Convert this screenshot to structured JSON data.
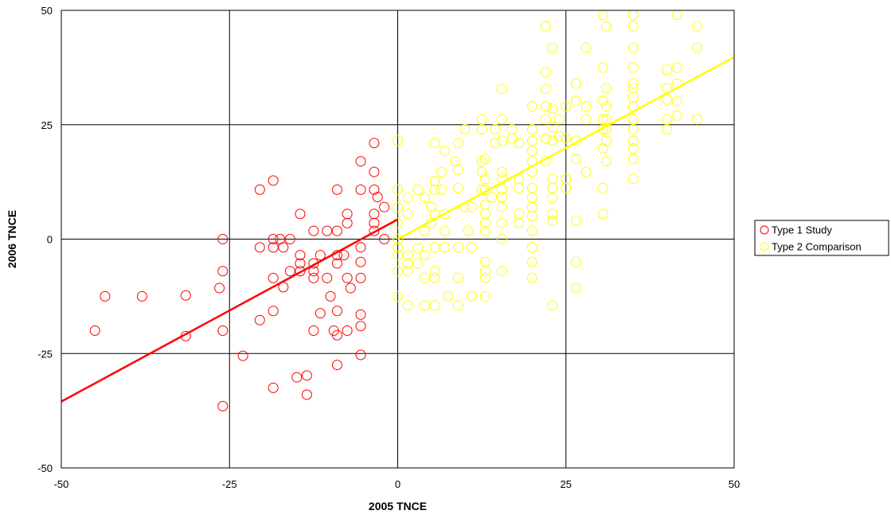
{
  "chart_data": {
    "type": "scatter",
    "title": "",
    "xlabel": "2005 TNCE",
    "ylabel": "2006 TNCE",
    "xlim": [
      -50,
      50
    ],
    "ylim": [
      -50,
      50
    ],
    "xticks": [
      -50,
      -25,
      0,
      25,
      50
    ],
    "yticks": [
      -50,
      -25,
      0,
      25,
      50
    ],
    "xtick_labels": [
      "-50",
      "-25",
      "0",
      "25",
      "50"
    ],
    "ytick_labels": [
      "-50",
      "-25",
      "0",
      "25",
      "50"
    ],
    "grid": true,
    "legend_position": "right",
    "series": [
      {
        "name": "Type 1 Study",
        "color": "#ff0000",
        "marker": "open-circle",
        "trendline": {
          "x": [
            -50,
            0
          ],
          "y": [
            -35.5,
            4.3
          ]
        },
        "points": [
          [
            -45,
            -20
          ],
          [
            -43.5,
            -12.5
          ],
          [
            -38,
            -12.5
          ],
          [
            -31.5,
            -12.3
          ],
          [
            -31.5,
            -21.2
          ],
          [
            -26.5,
            -10.7
          ],
          [
            -26,
            0
          ],
          [
            -26,
            -7
          ],
          [
            -26,
            -20
          ],
          [
            -26,
            -36.5
          ],
          [
            -23,
            -25.5
          ],
          [
            -20.5,
            10.8
          ],
          [
            -20.5,
            -1.8
          ],
          [
            -20.5,
            -17.7
          ],
          [
            -18.5,
            12.8
          ],
          [
            -18.5,
            0
          ],
          [
            -18.5,
            -1.8
          ],
          [
            -18.5,
            -8.5
          ],
          [
            -18.5,
            -15.7
          ],
          [
            -18.5,
            -32.5
          ],
          [
            -17.5,
            0
          ],
          [
            -17,
            -1.8
          ],
          [
            -17,
            -10.5
          ],
          [
            -16,
            0
          ],
          [
            -16,
            -7
          ],
          [
            -15,
            -30.2
          ],
          [
            -14.5,
            5.5
          ],
          [
            -14.5,
            -3.5
          ],
          [
            -14.5,
            -5.3
          ],
          [
            -14.5,
            -7
          ],
          [
            -13.5,
            -29.8
          ],
          [
            -13.5,
            -34
          ],
          [
            -12.5,
            1.8
          ],
          [
            -12.5,
            -5.3
          ],
          [
            -12.5,
            -7
          ],
          [
            -12.5,
            -8.5
          ],
          [
            -12.5,
            -20
          ],
          [
            -11.5,
            -3.5
          ],
          [
            -11.5,
            -16.2
          ],
          [
            -10.5,
            1.8
          ],
          [
            -10.5,
            -8.5
          ],
          [
            -10,
            -12.5
          ],
          [
            -9.5,
            -20
          ],
          [
            -9,
            10.8
          ],
          [
            -9,
            1.8
          ],
          [
            -9,
            -3.5
          ],
          [
            -9,
            -5.3
          ],
          [
            -9,
            -15.7
          ],
          [
            -9,
            -21
          ],
          [
            -9,
            -27.5
          ],
          [
            -8,
            -3.5
          ],
          [
            -7.5,
            5.5
          ],
          [
            -7.5,
            3.5
          ],
          [
            -7.5,
            -8.5
          ],
          [
            -7.5,
            -20
          ],
          [
            -7,
            -10.7
          ],
          [
            -5.5,
            17
          ],
          [
            -5.5,
            10.8
          ],
          [
            -5.5,
            -1.8
          ],
          [
            -5.5,
            -5
          ],
          [
            -5.5,
            -8.5
          ],
          [
            -5.5,
            -16.5
          ],
          [
            -5.5,
            -19
          ],
          [
            -5.5,
            -25.3
          ],
          [
            -3.5,
            21
          ],
          [
            -3.5,
            14.7
          ],
          [
            -3.5,
            10.8
          ],
          [
            -3.5,
            5.5
          ],
          [
            -3.5,
            3.5
          ],
          [
            -3.5,
            1.8
          ],
          [
            -3,
            9.2
          ],
          [
            -2,
            7
          ],
          [
            -2,
            0
          ]
        ]
      },
      {
        "name": "Type 2 Comparison",
        "color": "#ffff00",
        "marker": "open-circle",
        "trendline": {
          "x": [
            0,
            50
          ],
          "y": [
            0,
            39.8
          ]
        },
        "points": [
          [
            0,
            21.5
          ],
          [
            0,
            10.8
          ],
          [
            0,
            7
          ],
          [
            0,
            3.5
          ],
          [
            0,
            0
          ],
          [
            0,
            -1.8
          ],
          [
            0,
            -3.5
          ],
          [
            0,
            -7
          ],
          [
            0,
            -12.5
          ],
          [
            1.5,
            9
          ],
          [
            1.5,
            5.5
          ],
          [
            1.5,
            -3.5
          ],
          [
            1.5,
            -5.3
          ],
          [
            1.5,
            -7
          ],
          [
            1.5,
            -14.5
          ],
          [
            3,
            10.8
          ],
          [
            3,
            -2
          ],
          [
            3,
            -5.3
          ],
          [
            4,
            9
          ],
          [
            4,
            1.8
          ],
          [
            4,
            -3.5
          ],
          [
            4,
            -8.5
          ],
          [
            4,
            -14.5
          ],
          [
            5,
            7
          ],
          [
            5,
            3.5
          ],
          [
            5.5,
            21
          ],
          [
            5.5,
            12.7
          ],
          [
            5.5,
            10.8
          ],
          [
            5.5,
            5.5
          ],
          [
            5.5,
            -1.8
          ],
          [
            5.5,
            -7
          ],
          [
            5.5,
            -8.5
          ],
          [
            5.5,
            -14.5
          ],
          [
            6.5,
            14.7
          ],
          [
            6.5,
            10.8
          ],
          [
            7,
            19.3
          ],
          [
            7,
            5.5
          ],
          [
            7,
            1.8
          ],
          [
            7,
            -1.8
          ],
          [
            7.5,
            -12.5
          ],
          [
            8.5,
            17
          ],
          [
            9,
            21
          ],
          [
            9,
            15.2
          ],
          [
            9,
            11.2
          ],
          [
            9,
            -1.8
          ],
          [
            9,
            -8.5
          ],
          [
            9,
            -14.5
          ],
          [
            10,
            24
          ],
          [
            10,
            7
          ],
          [
            10.5,
            1.8
          ],
          [
            11,
            7
          ],
          [
            11,
            -1.8
          ],
          [
            11,
            -12.5
          ],
          [
            12.5,
            26.2
          ],
          [
            12.5,
            24
          ],
          [
            12.5,
            17
          ],
          [
            12.5,
            14.7
          ],
          [
            12.5,
            10.8
          ],
          [
            13,
            17.5
          ],
          [
            13,
            13.2
          ],
          [
            13,
            10.8
          ],
          [
            13,
            7.5
          ],
          [
            13,
            5.5
          ],
          [
            13,
            3.5
          ],
          [
            13,
            1.8
          ],
          [
            13,
            -5
          ],
          [
            13,
            -7
          ],
          [
            13,
            -8.5
          ],
          [
            13,
            -12.5
          ],
          [
            14,
            9.2
          ],
          [
            14.5,
            24
          ],
          [
            14.5,
            21
          ],
          [
            15.5,
            32.8
          ],
          [
            15.5,
            26.2
          ],
          [
            15.5,
            21.5
          ],
          [
            15.5,
            14.7
          ],
          [
            15.5,
            13.2
          ],
          [
            15.5,
            10.8
          ],
          [
            15.5,
            9.2
          ],
          [
            15.5,
            7
          ],
          [
            15.5,
            3.5
          ],
          [
            15.5,
            0
          ],
          [
            15.5,
            -7
          ],
          [
            17,
            24
          ],
          [
            17,
            22
          ],
          [
            18,
            21
          ],
          [
            18,
            13.2
          ],
          [
            18,
            11.2
          ],
          [
            18,
            5.5
          ],
          [
            18,
            3.5
          ],
          [
            20,
            29
          ],
          [
            20,
            24
          ],
          [
            20,
            21.5
          ],
          [
            20,
            19.3
          ],
          [
            20,
            17
          ],
          [
            20,
            14.7
          ],
          [
            20,
            11.2
          ],
          [
            20,
            9
          ],
          [
            20,
            7
          ],
          [
            20,
            5
          ],
          [
            20,
            1.8
          ],
          [
            20,
            -1.8
          ],
          [
            20,
            -5
          ],
          [
            20,
            -8.5
          ],
          [
            22,
            46.5
          ],
          [
            22,
            36.5
          ],
          [
            22,
            32.8
          ],
          [
            22,
            29
          ],
          [
            22,
            26.2
          ],
          [
            22,
            22
          ],
          [
            22,
            17
          ],
          [
            23,
            41.8
          ],
          [
            23,
            28.5
          ],
          [
            23,
            24.5
          ],
          [
            23,
            21.5
          ],
          [
            23,
            13.2
          ],
          [
            23,
            11.2
          ],
          [
            23,
            9
          ],
          [
            23,
            5.5
          ],
          [
            23,
            4
          ],
          [
            23,
            -14.5
          ],
          [
            24,
            26.2
          ],
          [
            24,
            22.5
          ],
          [
            25,
            29
          ],
          [
            25,
            22
          ],
          [
            25,
            13.2
          ],
          [
            25,
            11.2
          ],
          [
            26.5,
            34
          ],
          [
            26.5,
            30.2
          ],
          [
            26.5,
            21.5
          ],
          [
            26.5,
            17.5
          ],
          [
            26.5,
            4
          ],
          [
            26.5,
            -5
          ],
          [
            26.5,
            -10.7
          ],
          [
            28,
            41.8
          ],
          [
            28,
            29
          ],
          [
            28,
            26.2
          ],
          [
            28,
            14.7
          ],
          [
            30.5,
            49
          ],
          [
            30.5,
            37.5
          ],
          [
            30.5,
            30.2
          ],
          [
            30.5,
            26.2
          ],
          [
            30.5,
            24
          ],
          [
            30.5,
            19.8
          ],
          [
            30.5,
            11.2
          ],
          [
            30.5,
            5.5
          ],
          [
            31,
            46.5
          ],
          [
            31,
            33
          ],
          [
            31,
            29
          ],
          [
            31,
            26.2
          ],
          [
            31,
            24
          ],
          [
            31,
            21.5
          ],
          [
            31,
            17
          ],
          [
            35,
            49
          ],
          [
            35,
            46.5
          ],
          [
            35,
            41.8
          ],
          [
            35,
            37.5
          ],
          [
            35,
            34
          ],
          [
            35,
            33
          ],
          [
            35,
            31
          ],
          [
            35,
            29
          ],
          [
            35,
            26.2
          ],
          [
            35,
            24
          ],
          [
            35,
            21.5
          ],
          [
            35,
            19.8
          ],
          [
            35,
            17.5
          ],
          [
            35,
            13.2
          ],
          [
            40,
            37
          ],
          [
            40,
            33
          ],
          [
            40,
            30.5
          ],
          [
            40,
            26.2
          ],
          [
            40,
            24
          ],
          [
            41.5,
            49
          ],
          [
            41.5,
            37.5
          ],
          [
            41.5,
            34
          ],
          [
            41.5,
            30.2
          ],
          [
            41.5,
            27
          ],
          [
            44.5,
            46.5
          ],
          [
            44.5,
            41.8
          ],
          [
            44.5,
            26.2
          ]
        ]
      }
    ]
  }
}
